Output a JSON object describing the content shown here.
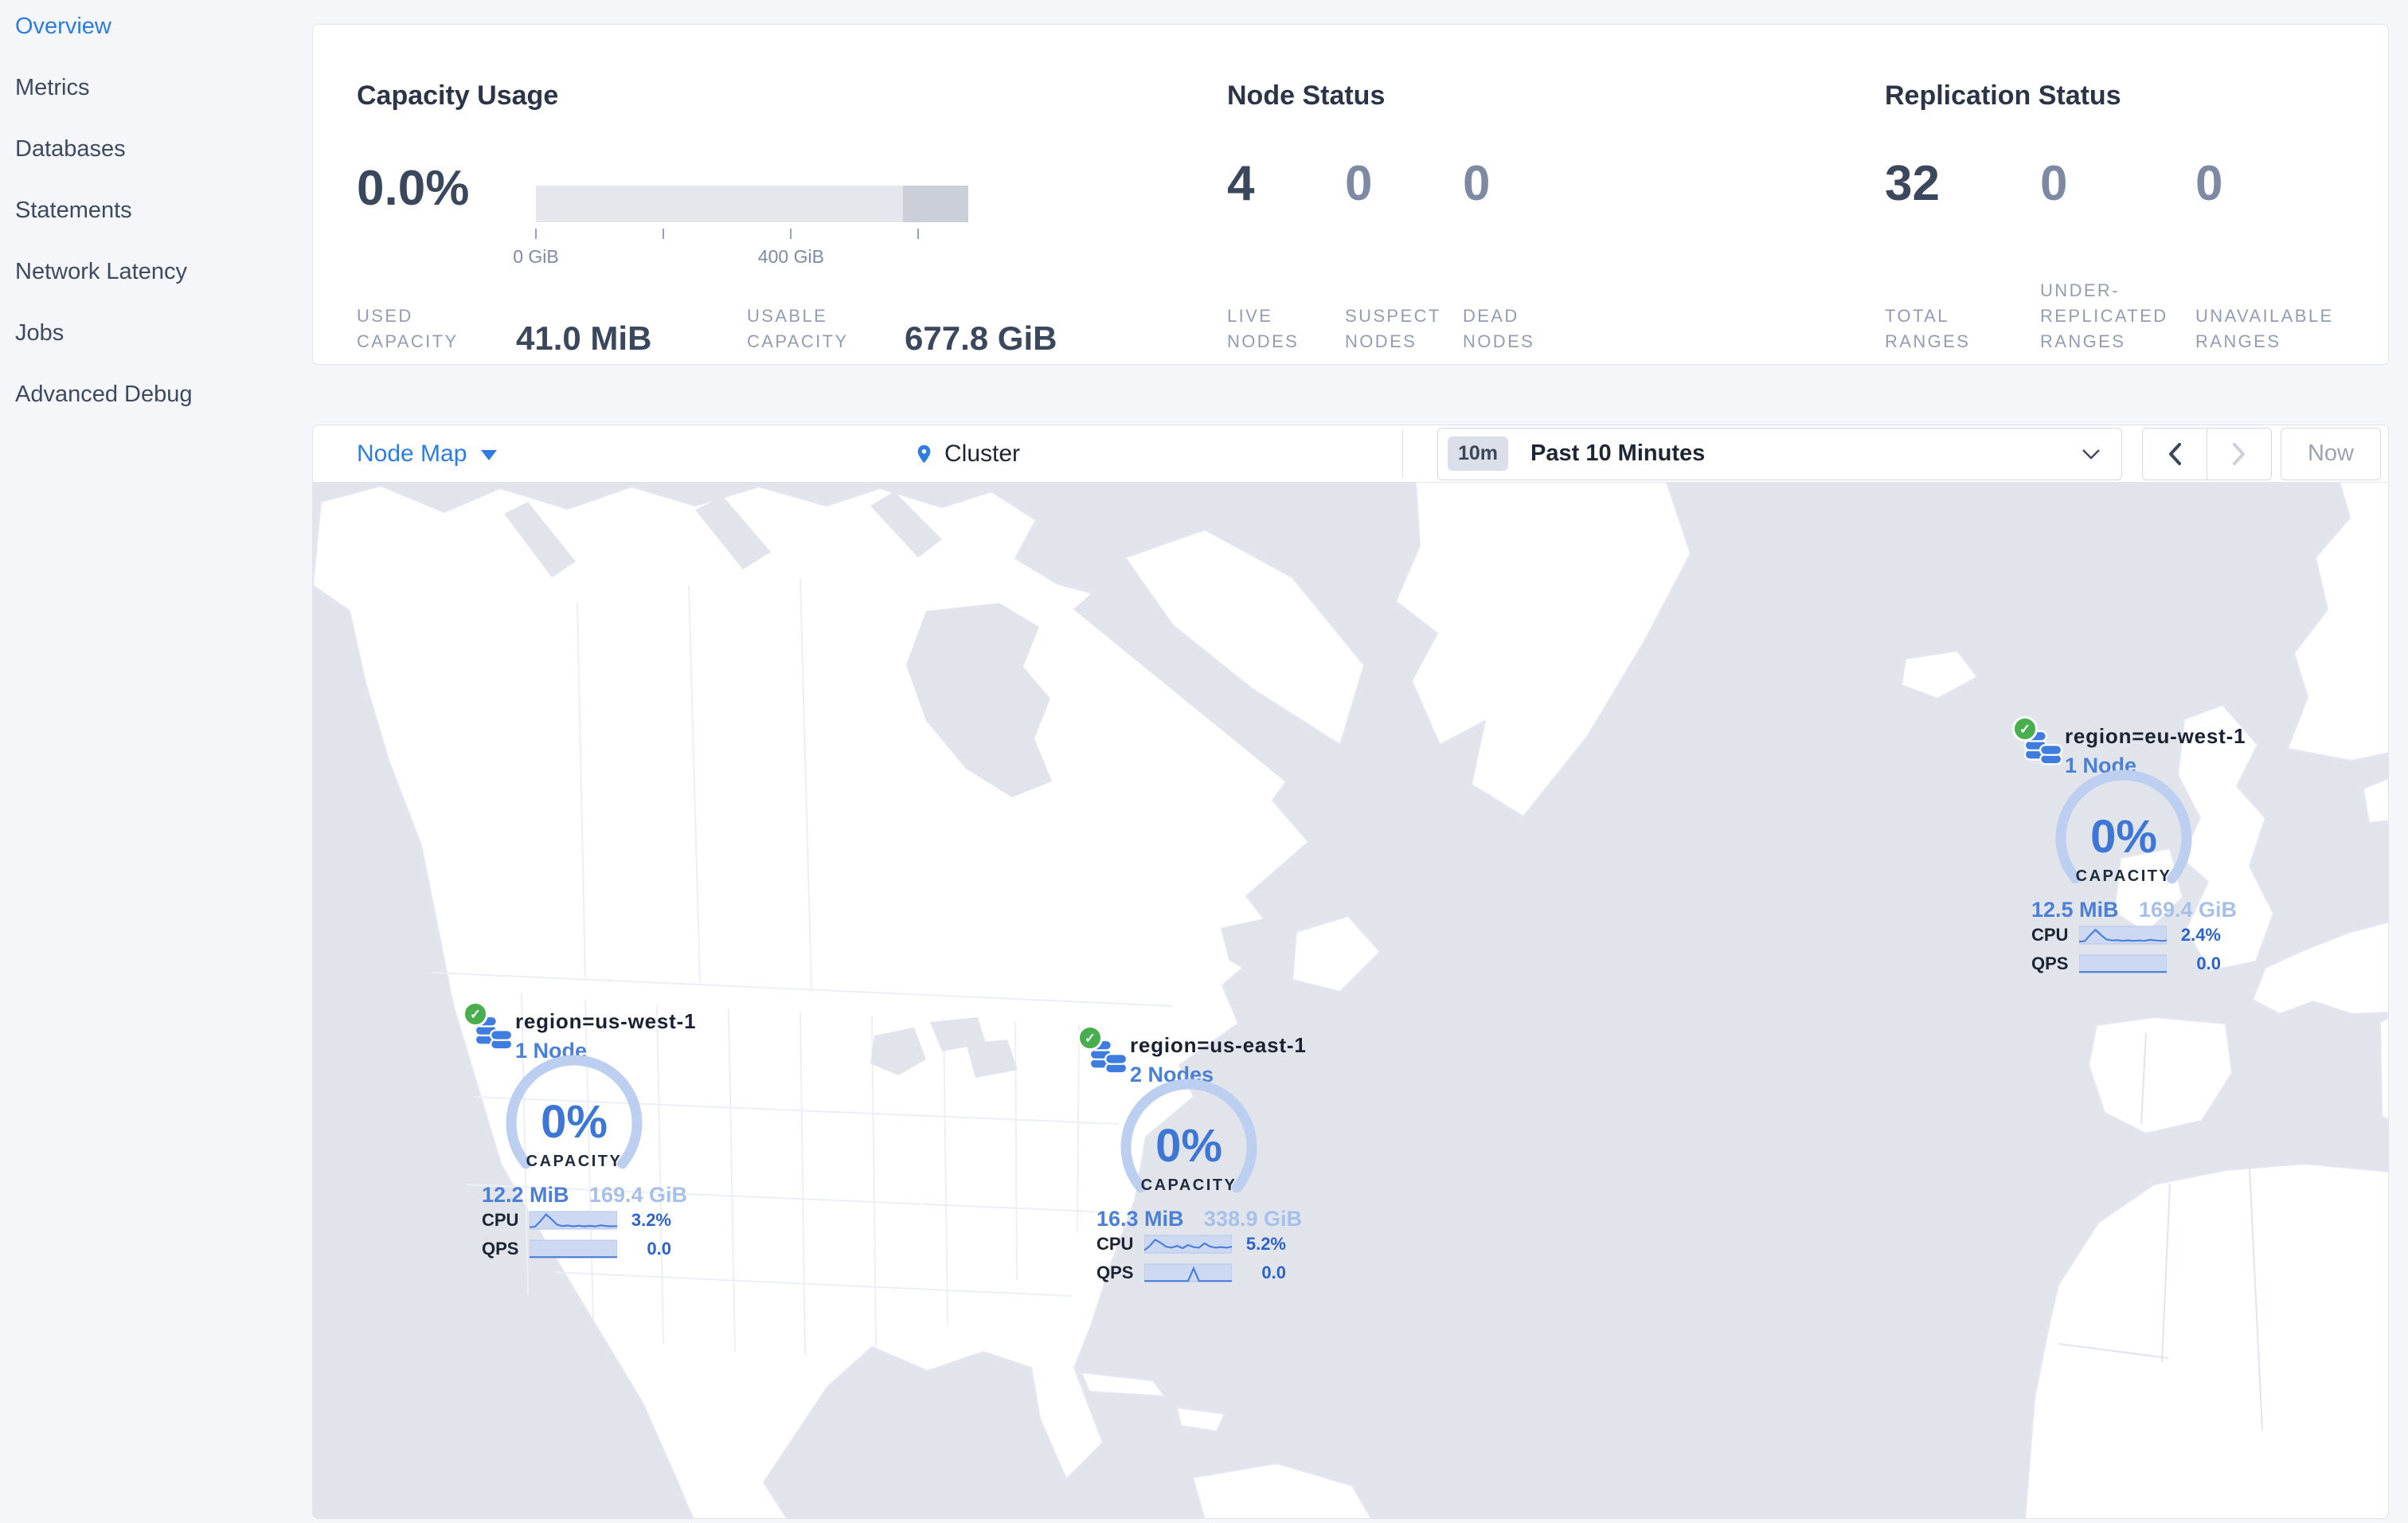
{
  "sidebar": {
    "items": [
      {
        "label": "Overview",
        "active": true
      },
      {
        "label": "Metrics",
        "active": false
      },
      {
        "label": "Databases",
        "active": false
      },
      {
        "label": "Statements",
        "active": false
      },
      {
        "label": "Network Latency",
        "active": false
      },
      {
        "label": "Jobs",
        "active": false
      },
      {
        "label": "Advanced Debug",
        "active": false
      }
    ]
  },
  "summary": {
    "capacity": {
      "title": "Capacity Usage",
      "percent": "0.0%",
      "bar": {
        "light_pct": 84.9,
        "dark_pct": 15.1
      },
      "ticks": [
        {
          "pct": 0,
          "label": "0 GiB"
        },
        {
          "pct": 29.5,
          "label": ""
        },
        {
          "pct": 59,
          "label": "400 GiB"
        },
        {
          "pct": 88.4,
          "label": ""
        }
      ],
      "stats": [
        {
          "label": "USED CAPACITY",
          "value": "41.0 MiB"
        },
        {
          "label": "USABLE CAPACITY",
          "value": "677.8 GiB"
        }
      ]
    },
    "node_status": {
      "title": "Node Status",
      "stats": [
        {
          "value": "4",
          "label": "LIVE NODES"
        },
        {
          "value": "0",
          "label": "SUSPECT NODES"
        },
        {
          "value": "0",
          "label": "DEAD NODES"
        }
      ]
    },
    "replication": {
      "title": "Replication Status",
      "stats": [
        {
          "value": "32",
          "label": "TOTAL RANGES"
        },
        {
          "value": "0",
          "label": "UNDER-REPLICATED RANGES"
        },
        {
          "value": "0",
          "label": "UNAVAILABLE RANGES"
        }
      ]
    }
  },
  "toolbar": {
    "view_label": "Node Map",
    "breadcrumb": "Cluster",
    "time_badge": "10m",
    "time_label": "Past 10 Minutes",
    "now_label": "Now"
  },
  "map": {
    "markers": [
      {
        "region": "region=us-west-1",
        "nodes": "1 Node",
        "percent": "0%",
        "capacity_label": "CAPACITY",
        "used": "12.2 MiB",
        "capacity": "169.4 GiB",
        "cpu_label": "CPU",
        "cpu": "3.2%",
        "qps_label": "QPS",
        "qps": "0.0",
        "cpu_points": [
          0.15,
          0.18,
          0.5,
          0.88,
          0.62,
          0.3,
          0.22,
          0.25,
          0.2,
          0.24,
          0.2,
          0.23,
          0.2,
          0.26,
          0.22,
          0.2,
          0.22
        ],
        "qps_points": [
          0.08,
          0.08,
          0.08,
          0.08,
          0.08,
          0.08,
          0.08,
          0.08,
          0.08,
          0.08,
          0.08,
          0.08,
          0.08,
          0.08,
          0.08,
          0.08,
          0.08
        ]
      },
      {
        "region": "region=us-east-1",
        "nodes": "2 Nodes",
        "percent": "0%",
        "capacity_label": "CAPACITY",
        "used": "16.3 MiB",
        "capacity": "338.9 GiB",
        "cpu_label": "CPU",
        "cpu": "5.2%",
        "qps_label": "QPS",
        "qps": "0.0",
        "cpu_points": [
          0.2,
          0.45,
          0.8,
          0.62,
          0.4,
          0.35,
          0.45,
          0.32,
          0.5,
          0.38,
          0.35,
          0.6,
          0.42,
          0.35,
          0.38,
          0.35,
          0.4
        ],
        "qps_points": [
          0.08,
          0.08,
          0.08,
          0.08,
          0.08,
          0.08,
          0.08,
          0.08,
          0.08,
          0.8,
          0.08,
          0.08,
          0.08,
          0.08,
          0.08,
          0.08,
          0.08
        ]
      },
      {
        "region": "region=eu-west-1",
        "nodes": "1 Node",
        "percent": "0%",
        "capacity_label": "CAPACITY",
        "used": "12.5 MiB",
        "capacity": "169.4 GiB",
        "cpu_label": "CPU",
        "cpu": "2.4%",
        "qps_label": "QPS",
        "qps": "0.0",
        "cpu_points": [
          0.18,
          0.2,
          0.55,
          0.85,
          0.55,
          0.3,
          0.24,
          0.26,
          0.22,
          0.25,
          0.22,
          0.24,
          0.22,
          0.28,
          0.24,
          0.22,
          0.24
        ],
        "qps_points": [
          0.08,
          0.08,
          0.08,
          0.08,
          0.08,
          0.08,
          0.08,
          0.08,
          0.08,
          0.08,
          0.08,
          0.08,
          0.08,
          0.08,
          0.08,
          0.08,
          0.08
        ]
      }
    ]
  },
  "colors": {
    "accent_blue": "#2f7ce0",
    "marker_blue": "#4b80d6",
    "gauge_arc": "#bdcff1",
    "light_blue": "#a7c0ea",
    "status_green": "#49ae4d",
    "dark_text": "#1a2232",
    "muted_text": "#939db2",
    "ocean": "#e1e4ea",
    "bar_light": "#e5e7ec",
    "bar_dark": "#cbcfd8"
  }
}
